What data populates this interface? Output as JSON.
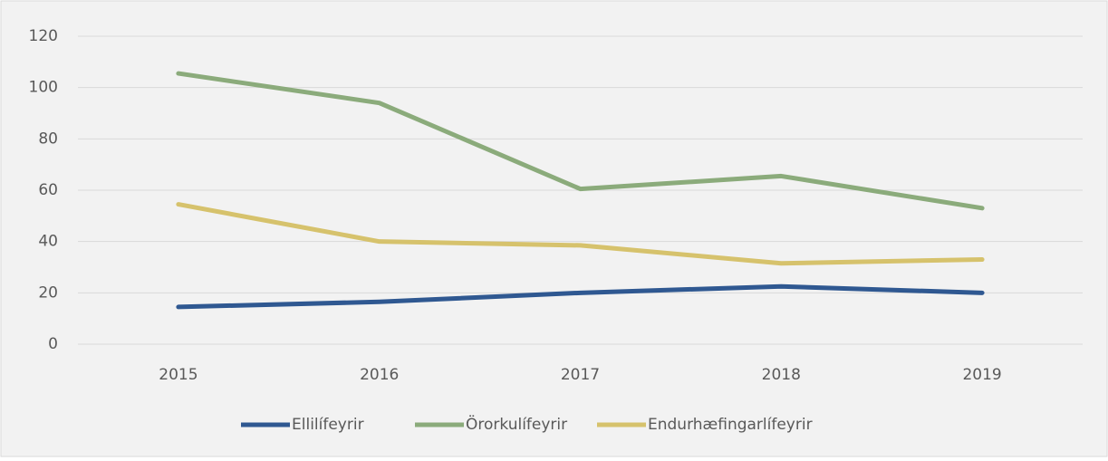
{
  "chart_data": {
    "type": "line",
    "categories": [
      "2015",
      "2016",
      "2017",
      "2018",
      "2019"
    ],
    "series": [
      {
        "name": "Ellilífeyrir",
        "color": "#2f5891",
        "values": [
          14.5,
          16.5,
          20,
          22.5,
          20
        ]
      },
      {
        "name": "Örorkulífeyrir",
        "color": "#8bab7b",
        "values": [
          105.5,
          94,
          60.5,
          65.5,
          53
        ]
      },
      {
        "name": "Endurhæfingarlífeyrir",
        "color": "#d6c26c",
        "values": [
          54.5,
          40,
          38.5,
          31.5,
          33
        ]
      }
    ],
    "ylim": [
      0,
      120
    ],
    "yticks": [
      0,
      20,
      40,
      60,
      80,
      100,
      120
    ],
    "grid": true,
    "legend": "bottom"
  }
}
